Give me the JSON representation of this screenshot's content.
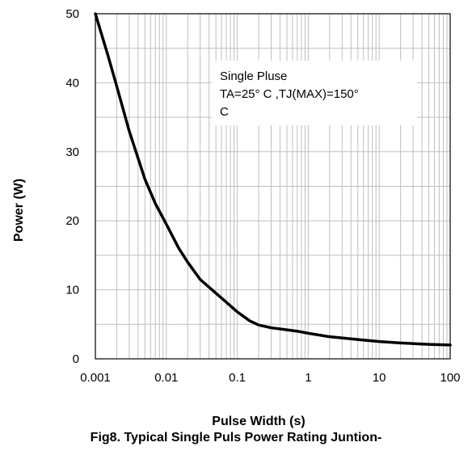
{
  "chart_data": {
    "type": "line",
    "xlabel": "Pulse Width (s)",
    "ylabel": "Power (W)",
    "caption": "Fig8. Typical Single Puls Power Rating Juntion-",
    "x_scale": "log",
    "xlim": [
      0.001,
      100
    ],
    "ylim": [
      0,
      50
    ],
    "grid": true,
    "x_ticks": [
      "0.001",
      "0.01",
      "0.1",
      "1",
      "10",
      "100"
    ],
    "y_ticks": [
      "0",
      "10",
      "20",
      "30",
      "40",
      "50"
    ],
    "annotation": {
      "lines": [
        "Single Pluse",
        "TA=25° C ,TJ(MAX)=150°",
        "C"
      ]
    },
    "series": [
      {
        "x": [
          0.001,
          0.0015,
          0.002,
          0.003,
          0.005,
          0.007,
          0.01,
          0.015,
          0.02,
          0.03,
          0.05,
          0.07,
          0.1,
          0.15,
          0.2,
          0.3,
          0.5,
          0.7,
          1,
          2,
          5,
          10,
          20,
          50,
          100
        ],
        "y": [
          50,
          44,
          39.5,
          33,
          26,
          22.5,
          19.5,
          16,
          14,
          11.5,
          9.5,
          8.2,
          6.8,
          5.5,
          4.9,
          4.5,
          4.2,
          4.0,
          3.7,
          3.2,
          2.8,
          2.5,
          2.3,
          2.1,
          2.0
        ]
      }
    ]
  }
}
